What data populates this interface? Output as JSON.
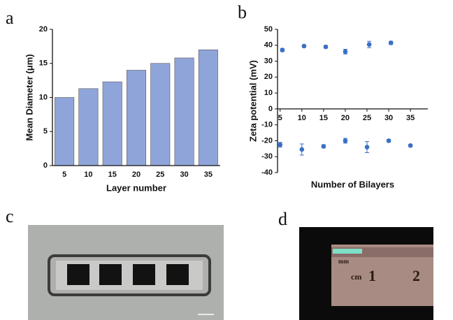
{
  "panel_labels": [
    "a",
    "b",
    "c",
    "d"
  ],
  "ruler_labels": [
    "mm",
    "cm",
    "1",
    "2"
  ],
  "chart_data": [
    {
      "type": "bar",
      "x_label": "Layer number",
      "y_label": "Mean Diameter (μm)",
      "categories": [
        "5",
        "10",
        "15",
        "20",
        "25",
        "30",
        "35"
      ],
      "values": [
        10,
        11.3,
        12.3,
        14,
        15,
        15.8,
        17
      ],
      "color": "#8fa5d9",
      "ylim": [
        0,
        20
      ],
      "yticks": [
        0,
        5,
        10,
        15,
        20
      ]
    },
    {
      "type": "scatter",
      "x_label": "Number of Bilayers",
      "y_label": "Zeta potential (mV)",
      "series": [
        {
          "color": "#3b6fc6",
          "x": [
            5.5,
            10.5,
            15.5,
            20,
            25.5,
            30.5
          ],
          "values": [
            37,
            39.5,
            39,
            36,
            40.5,
            41.5
          ],
          "errors": [
            1,
            0.8,
            0.8,
            1.5,
            2,
            1
          ]
        },
        {
          "color": "#3b6fc6",
          "x": [
            5,
            10,
            15,
            20,
            25,
            30,
            35
          ],
          "values": [
            -22.5,
            -25.5,
            -23.5,
            -20,
            -24,
            -20,
            -23
          ],
          "errors": [
            1.5,
            3.5,
            1,
            1.5,
            3.5,
            0.8,
            0.8
          ]
        }
      ],
      "xlim": [
        4.4,
        39
      ],
      "xticks": [
        5,
        10,
        15,
        20,
        25,
        30,
        35
      ],
      "ylim": [
        -40,
        50
      ],
      "yticks": [
        -40,
        -30,
        -20,
        -10,
        0,
        10,
        20,
        30,
        40,
        50
      ]
    }
  ]
}
